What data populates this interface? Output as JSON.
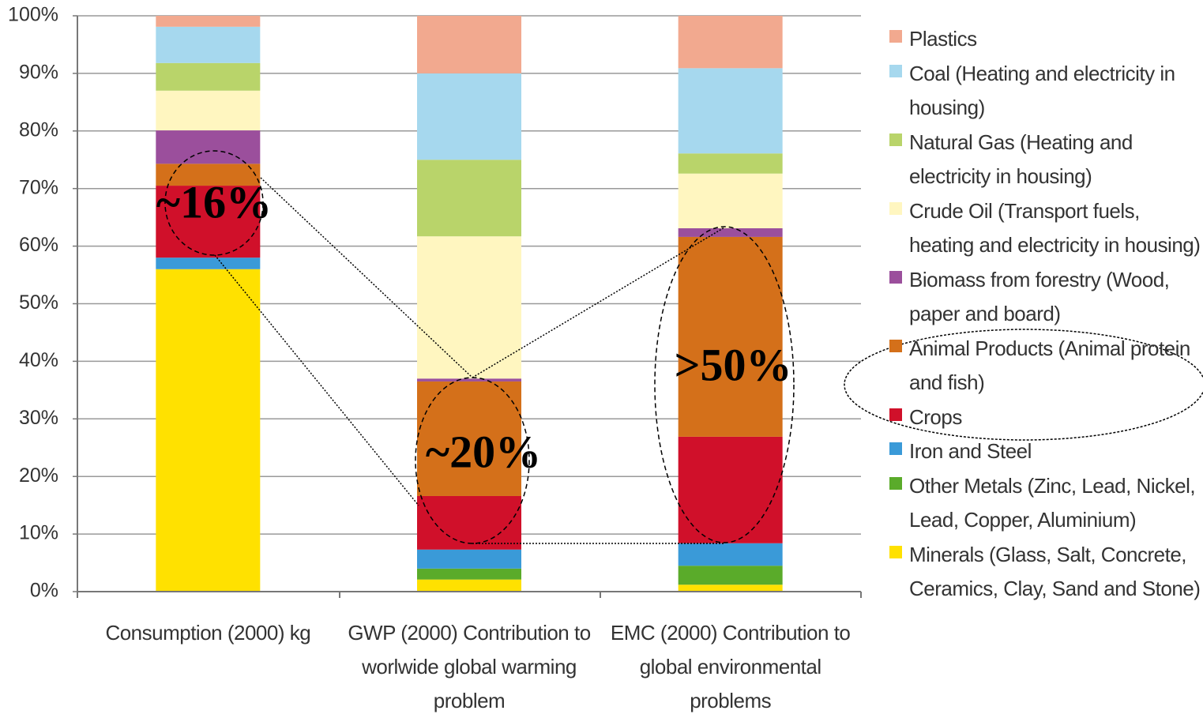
{
  "chart_data": {
    "type": "stacked_bar",
    "categories": [
      "Consumption (2000) kg",
      "GWP (2000) Contribution to worlwide global warming problem",
      "EMC (2000) Contribution to global environmental problems"
    ],
    "series": [
      {
        "name": "Minerals (Glass, Salt, Concrete, Ceramics, Clay, Sand and Stone)",
        "color": "#ffe100",
        "values": [
          56.0,
          2.1,
          1.2
        ]
      },
      {
        "name": "Other Metals (Zinc, Lead, Nickel, Lead, Copper, Aluminium)",
        "color": "#5aab2a",
        "values": [
          0,
          1.9,
          3.3
        ]
      },
      {
        "name": "Iron and Steel",
        "color": "#3a9ad8",
        "values": [
          2.0,
          3.3,
          3.9
        ]
      },
      {
        "name": "Crops",
        "color": "#d0102a",
        "values": [
          12.5,
          9.3,
          18.5
        ]
      },
      {
        "name": "Animal Products (Animal protein and fish)",
        "color": "#d4701a",
        "values": [
          3.8,
          19.9,
          34.7
        ]
      },
      {
        "name": "Biomass from forestry (Wood, paper and board)",
        "color": "#9b4f9c",
        "values": [
          5.8,
          0.5,
          1.5
        ]
      },
      {
        "name": "Crude Oil (Transport fuels, heating and electricity in housing)",
        "color": "#fff6c0",
        "values": [
          6.9,
          24.7,
          9.5
        ]
      },
      {
        "name": "Natural Gas (Heating and electricity in housing)",
        "color": "#b9d46a",
        "values": [
          4.8,
          13.3,
          3.5
        ]
      },
      {
        "name": "Coal (Heating and electricity in housing)",
        "color": "#a6d8ee",
        "values": [
          6.3,
          15.0,
          14.8
        ]
      },
      {
        "name": "Plastics",
        "color": "#f2a98f",
        "values": [
          1.9,
          10.0,
          9.1
        ]
      }
    ],
    "ylim": [
      0,
      100
    ],
    "yticks": [
      {
        "value": 0,
        "label": "0%"
      },
      {
        "value": 10,
        "label": "10%"
      },
      {
        "value": 20,
        "label": "20%"
      },
      {
        "value": 30,
        "label": "30%"
      },
      {
        "value": 40,
        "label": "40%"
      },
      {
        "value": 50,
        "label": "50%"
      },
      {
        "value": 60,
        "label": "60%"
      },
      {
        "value": 70,
        "label": "70%"
      },
      {
        "value": 80,
        "label": "80%"
      },
      {
        "value": 90,
        "label": "90%"
      },
      {
        "value": 100,
        "label": "100%"
      }
    ],
    "grid": true,
    "annotations": [
      "~16%",
      "~20%",
      ">50%"
    ]
  }
}
